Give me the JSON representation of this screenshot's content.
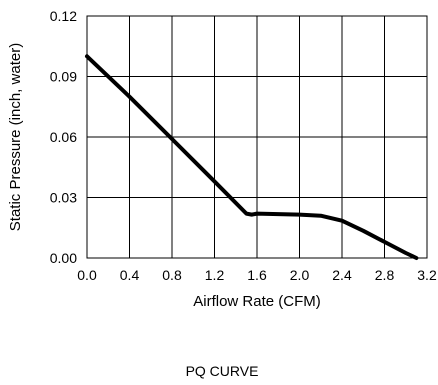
{
  "chart_data": {
    "type": "line",
    "title": "",
    "xlabel": "Airflow Rate (CFM)",
    "ylabel": "Static Pressure (inch, water)",
    "caption": "PQ CURVE",
    "xlim": [
      0,
      3.2
    ],
    "ylim": [
      0,
      0.12
    ],
    "x_ticks": [
      "0.0",
      "0.4",
      "0.8",
      "1.2",
      "1.6",
      "2.0",
      "2.4",
      "2.8",
      "3.2"
    ],
    "y_ticks": [
      "0.00",
      "0.03",
      "0.06",
      "0.09",
      "0.12"
    ],
    "grid": true,
    "series": [
      {
        "x": [
          0.0,
          0.4,
          0.8,
          1.2,
          1.5,
          1.55,
          1.6,
          2.0,
          2.2,
          2.4,
          2.6,
          2.8,
          3.0,
          3.1
        ],
        "y": [
          0.1,
          0.08,
          0.059,
          0.038,
          0.022,
          0.0215,
          0.022,
          0.0215,
          0.021,
          0.0185,
          0.0135,
          0.008,
          0.0025,
          0.0
        ],
        "color": "#000000"
      }
    ]
  }
}
